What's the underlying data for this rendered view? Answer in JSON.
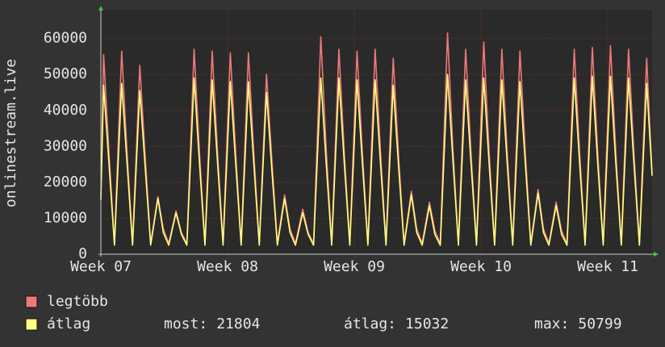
{
  "chart_data": {
    "type": "line",
    "y_label": "onlinestream.live",
    "x": [
      0,
      0.15,
      0.45,
      0.75,
      1.15,
      1.45,
      1.75,
      2.15,
      2.45,
      2.75,
      3.15,
      3.45,
      3.75,
      4.15,
      4.45,
      4.75,
      5.15,
      5.45,
      5.75,
      6.15,
      6.45,
      6.75,
      7.15,
      7.45,
      7.75,
      8.15,
      8.45,
      8.75,
      9.15,
      9.45,
      9.75,
      10.15,
      10.45,
      10.75,
      11.15,
      11.45,
      11.75,
      12.15,
      12.45,
      12.75,
      13.15,
      13.45,
      13.75,
      14.15,
      14.45,
      14.75,
      15.15,
      15.45,
      15.75,
      16.15,
      16.45,
      16.75,
      17.15,
      17.45,
      17.75,
      18.15,
      18.45,
      18.75,
      19.15,
      19.45,
      19.75,
      20.15,
      20.45,
      20.75,
      21.15,
      21.45,
      21.75,
      22.15,
      22.45,
      22.75,
      23.15,
      23.45,
      23.75,
      24.15,
      24.45,
      24.75,
      25.15,
      25.45,
      25.75,
      26.15,
      26.45,
      26.75,
      27.15,
      27.45,
      27.75,
      28.15,
      28.45,
      28.75,
      29.15,
      29.45,
      29.75,
      30.15,
      30.45
    ],
    "series": [
      {
        "name": "legtöbb",
        "color": "#f07878",
        "values": [
          16000,
          55500,
          28000,
          3000,
          56500,
          28000,
          3000,
          52500,
          27000,
          3000,
          16000,
          7000,
          3000,
          12000,
          6000,
          3000,
          57000,
          28000,
          3000,
          56500,
          28000,
          3000,
          56000,
          28000,
          3000,
          56000,
          28000,
          3000,
          50000,
          26000,
          3000,
          16500,
          7000,
          3000,
          12500,
          6000,
          3000,
          60500,
          29000,
          3000,
          57000,
          28000,
          3000,
          56500,
          28000,
          3000,
          57000,
          28000,
          3000,
          54500,
          27000,
          3000,
          17500,
          7000,
          3000,
          14500,
          6500,
          3000,
          61500,
          29000,
          3000,
          57000,
          28000,
          3000,
          59000,
          28000,
          3000,
          57000,
          28000,
          3000,
          56500,
          28000,
          3000,
          18000,
          7000,
          3000,
          14500,
          6500,
          3000,
          57000,
          28000,
          3000,
          57500,
          28000,
          3000,
          58000,
          28000,
          3000,
          57000,
          28000,
          3000,
          54500,
          22500
        ]
      },
      {
        "name": "átlag",
        "color": "#ffff80",
        "values": [
          15000,
          47000,
          25000,
          2500,
          47500,
          25000,
          2500,
          45500,
          24000,
          2500,
          15500,
          6000,
          2500,
          11500,
          5500,
          2500,
          49000,
          25000,
          2500,
          48500,
          25000,
          2500,
          48000,
          25000,
          2500,
          48000,
          25000,
          2500,
          45000,
          23000,
          2500,
          15500,
          6000,
          2500,
          11500,
          5500,
          2500,
          49000,
          25000,
          2500,
          49000,
          25000,
          2500,
          48500,
          25000,
          2500,
          48500,
          25000,
          2500,
          47000,
          24000,
          2500,
          16500,
          6000,
          2500,
          13500,
          5500,
          2500,
          50000,
          26000,
          2500,
          48500,
          25000,
          2500,
          49000,
          25000,
          2500,
          48500,
          25000,
          2500,
          48000,
          25000,
          2500,
          17000,
          6000,
          2500,
          13500,
          5500,
          2500,
          49000,
          25000,
          2500,
          49500,
          25000,
          2500,
          49500,
          25000,
          2500,
          49000,
          25000,
          2500,
          47500,
          21804
        ]
      }
    ],
    "xlim": [
      0,
      30.45
    ],
    "xticks": [
      {
        "value": 0,
        "label": "Week 07"
      },
      {
        "value": 7,
        "label": "Week 08"
      },
      {
        "value": 14,
        "label": "Week 09"
      },
      {
        "value": 21,
        "label": "Week 10"
      },
      {
        "value": 28,
        "label": "Week 11"
      }
    ],
    "ylim": [
      0,
      68000
    ],
    "yticks": [
      0,
      10000,
      20000,
      30000,
      40000,
      50000,
      60000
    ],
    "grid": true,
    "stats": [
      {
        "label": "most:",
        "value": 21804
      },
      {
        "label": "átlag:",
        "value": 15032
      },
      {
        "label": "max:",
        "value": 50799
      }
    ]
  }
}
